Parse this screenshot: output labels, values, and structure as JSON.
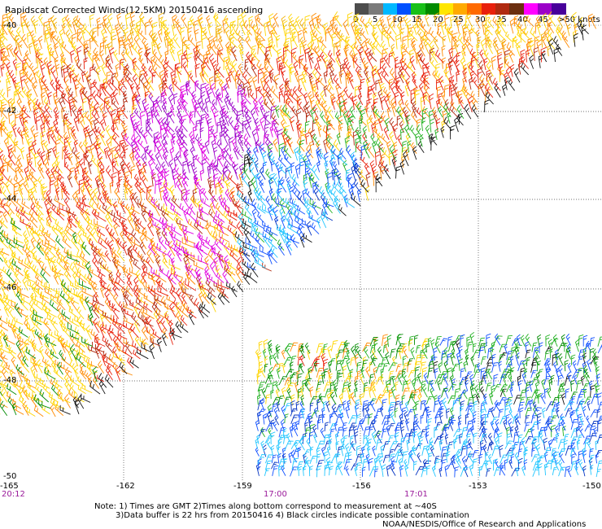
{
  "title": "Rapidscat Corrected Winds(12.5KM) 20150416 ascending",
  "colorbar": {
    "colors": [
      "#4d4d4d",
      "#7a7a7a",
      "#00b8ff",
      "#0050ff",
      "#18c018",
      "#008a00",
      "#ffe600",
      "#ffaa00",
      "#ff6a00",
      "#e8200c",
      "#b02a10",
      "#6b2e0f",
      "#ff00ff",
      "#9b00c8",
      "#48009a"
    ],
    "labels": [
      "0",
      "5",
      "10",
      "15",
      "20",
      "25",
      "30",
      "35",
      "40",
      "45",
      ">50 knots"
    ]
  },
  "axes": {
    "lat_labels": [
      "-40",
      "-42",
      "-44",
      "-46",
      "-48",
      "-50"
    ],
    "lon_labels": [
      "-165",
      "-162",
      "-159",
      "-156",
      "-153",
      "-150"
    ]
  },
  "times": [
    "20:12",
    "17:00",
    "17:01"
  ],
  "notes": [
    "Note: 1) Times are GMT 2)Times along bottom correspond to measurement at ~40S",
    "3)Data buffer is 22 hrs from 20150416 4) Black circles indicate possible contamination",
    "NOAA/NESDIS/Office of Research and Applications"
  ]
}
